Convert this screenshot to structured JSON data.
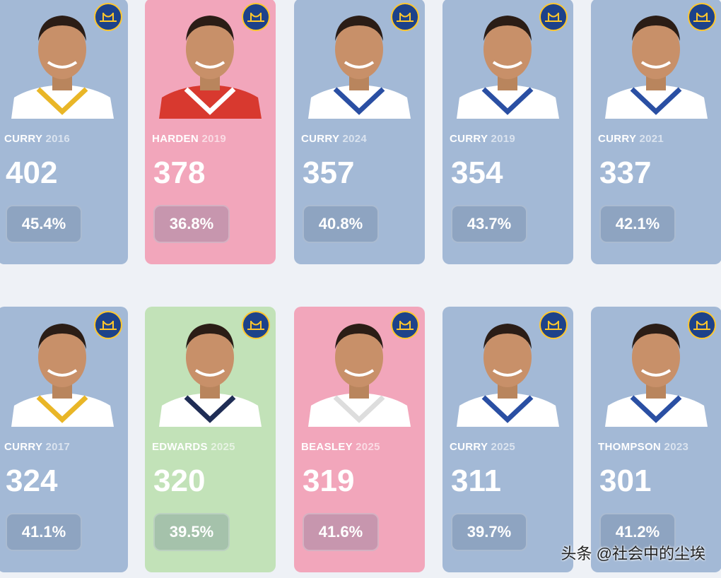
{
  "cards": [
    {
      "name": "CURRY",
      "year": "2016",
      "value": "402",
      "pct": "45.4%",
      "color": "#a3b9d6",
      "jersey": "#ffffff",
      "trim": "#e9b627"
    },
    {
      "name": "HARDEN",
      "year": "2019",
      "value": "378",
      "pct": "36.8%",
      "color": "#f2a6bb",
      "jersey": "#d8392f",
      "trim": "#ffffff"
    },
    {
      "name": "CURRY",
      "year": "2024",
      "value": "357",
      "pct": "40.8%",
      "color": "#a3b9d6",
      "jersey": "#ffffff",
      "trim": "#2a4fa3"
    },
    {
      "name": "CURRY",
      "year": "2019",
      "value": "354",
      "pct": "43.7%",
      "color": "#a3b9d6",
      "jersey": "#ffffff",
      "trim": "#2a4fa3"
    },
    {
      "name": "CURRY",
      "year": "2021",
      "value": "337",
      "pct": "42.1%",
      "color": "#a3b9d6",
      "jersey": "#ffffff",
      "trim": "#2a4fa3"
    },
    {
      "name": "CURRY",
      "year": "2017",
      "value": "324",
      "pct": "41.1%",
      "color": "#a3b9d6",
      "jersey": "#ffffff",
      "trim": "#e9b627"
    },
    {
      "name": "EDWARDS",
      "year": "2025",
      "value": "320",
      "pct": "39.5%",
      "color": "#c2e2b8",
      "jersey": "#ffffff",
      "trim": "#1f2d55"
    },
    {
      "name": "BEASLEY",
      "year": "2025",
      "value": "319",
      "pct": "41.6%",
      "color": "#f2a6bb",
      "jersey": "#ffffff",
      "trim": "#dddddd"
    },
    {
      "name": "CURRY",
      "year": "2025",
      "value": "311",
      "pct": "39.7%",
      "color": "#a3b9d6",
      "jersey": "#ffffff",
      "trim": "#2a4fa3"
    },
    {
      "name": "THOMPSON",
      "year": "2023",
      "value": "301",
      "pct": "41.2%",
      "color": "#a3b9d6",
      "jersey": "#ffffff",
      "trim": "#2a4fa3"
    }
  ],
  "watermark": "头条 @社会中的尘埃"
}
